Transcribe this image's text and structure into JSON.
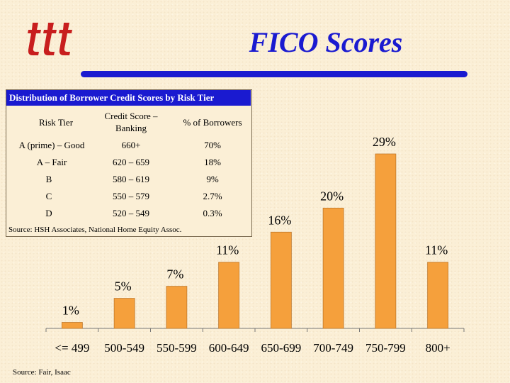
{
  "title": "FICO Scores",
  "logo": {
    "text": "ttt"
  },
  "table": {
    "title": "Distribution of Borrower Credit Scores by Risk Tier",
    "headers": [
      "Risk Tier",
      "Credit Score – Banking",
      "% of Borrowers"
    ],
    "rows": [
      [
        "A (prime) – Good",
        "660+",
        "70%"
      ],
      [
        "A – Fair",
        "620 – 659",
        "18%"
      ],
      [
        "B",
        "580 – 619",
        "9%"
      ],
      [
        "C",
        "550 – 579",
        "2.7%"
      ],
      [
        "D",
        "520 – 549",
        "0.3%"
      ]
    ],
    "source": "Source: HSH Associates, National Home Equity Assoc."
  },
  "chart_data": {
    "type": "bar",
    "categories": [
      "<= 499",
      "500-549",
      "550-599",
      "600-649",
      "650-699",
      "700-749",
      "750-799",
      "800+"
    ],
    "values": [
      1,
      5,
      7,
      11,
      16,
      20,
      29,
      11
    ],
    "data_labels": [
      "1%",
      "5%",
      "7%",
      "11%",
      "16%",
      "20%",
      "29%",
      "11%"
    ],
    "ylim": [
      0,
      29
    ],
    "bar_color": "#f5a03c",
    "grid": false,
    "legend": "none",
    "source": "Source: Fair, Isaac"
  },
  "colors": {
    "title": "#1a1ad0",
    "bar": "#f5a03c",
    "background": "#fbefd6",
    "logo": "#c81e1e"
  }
}
